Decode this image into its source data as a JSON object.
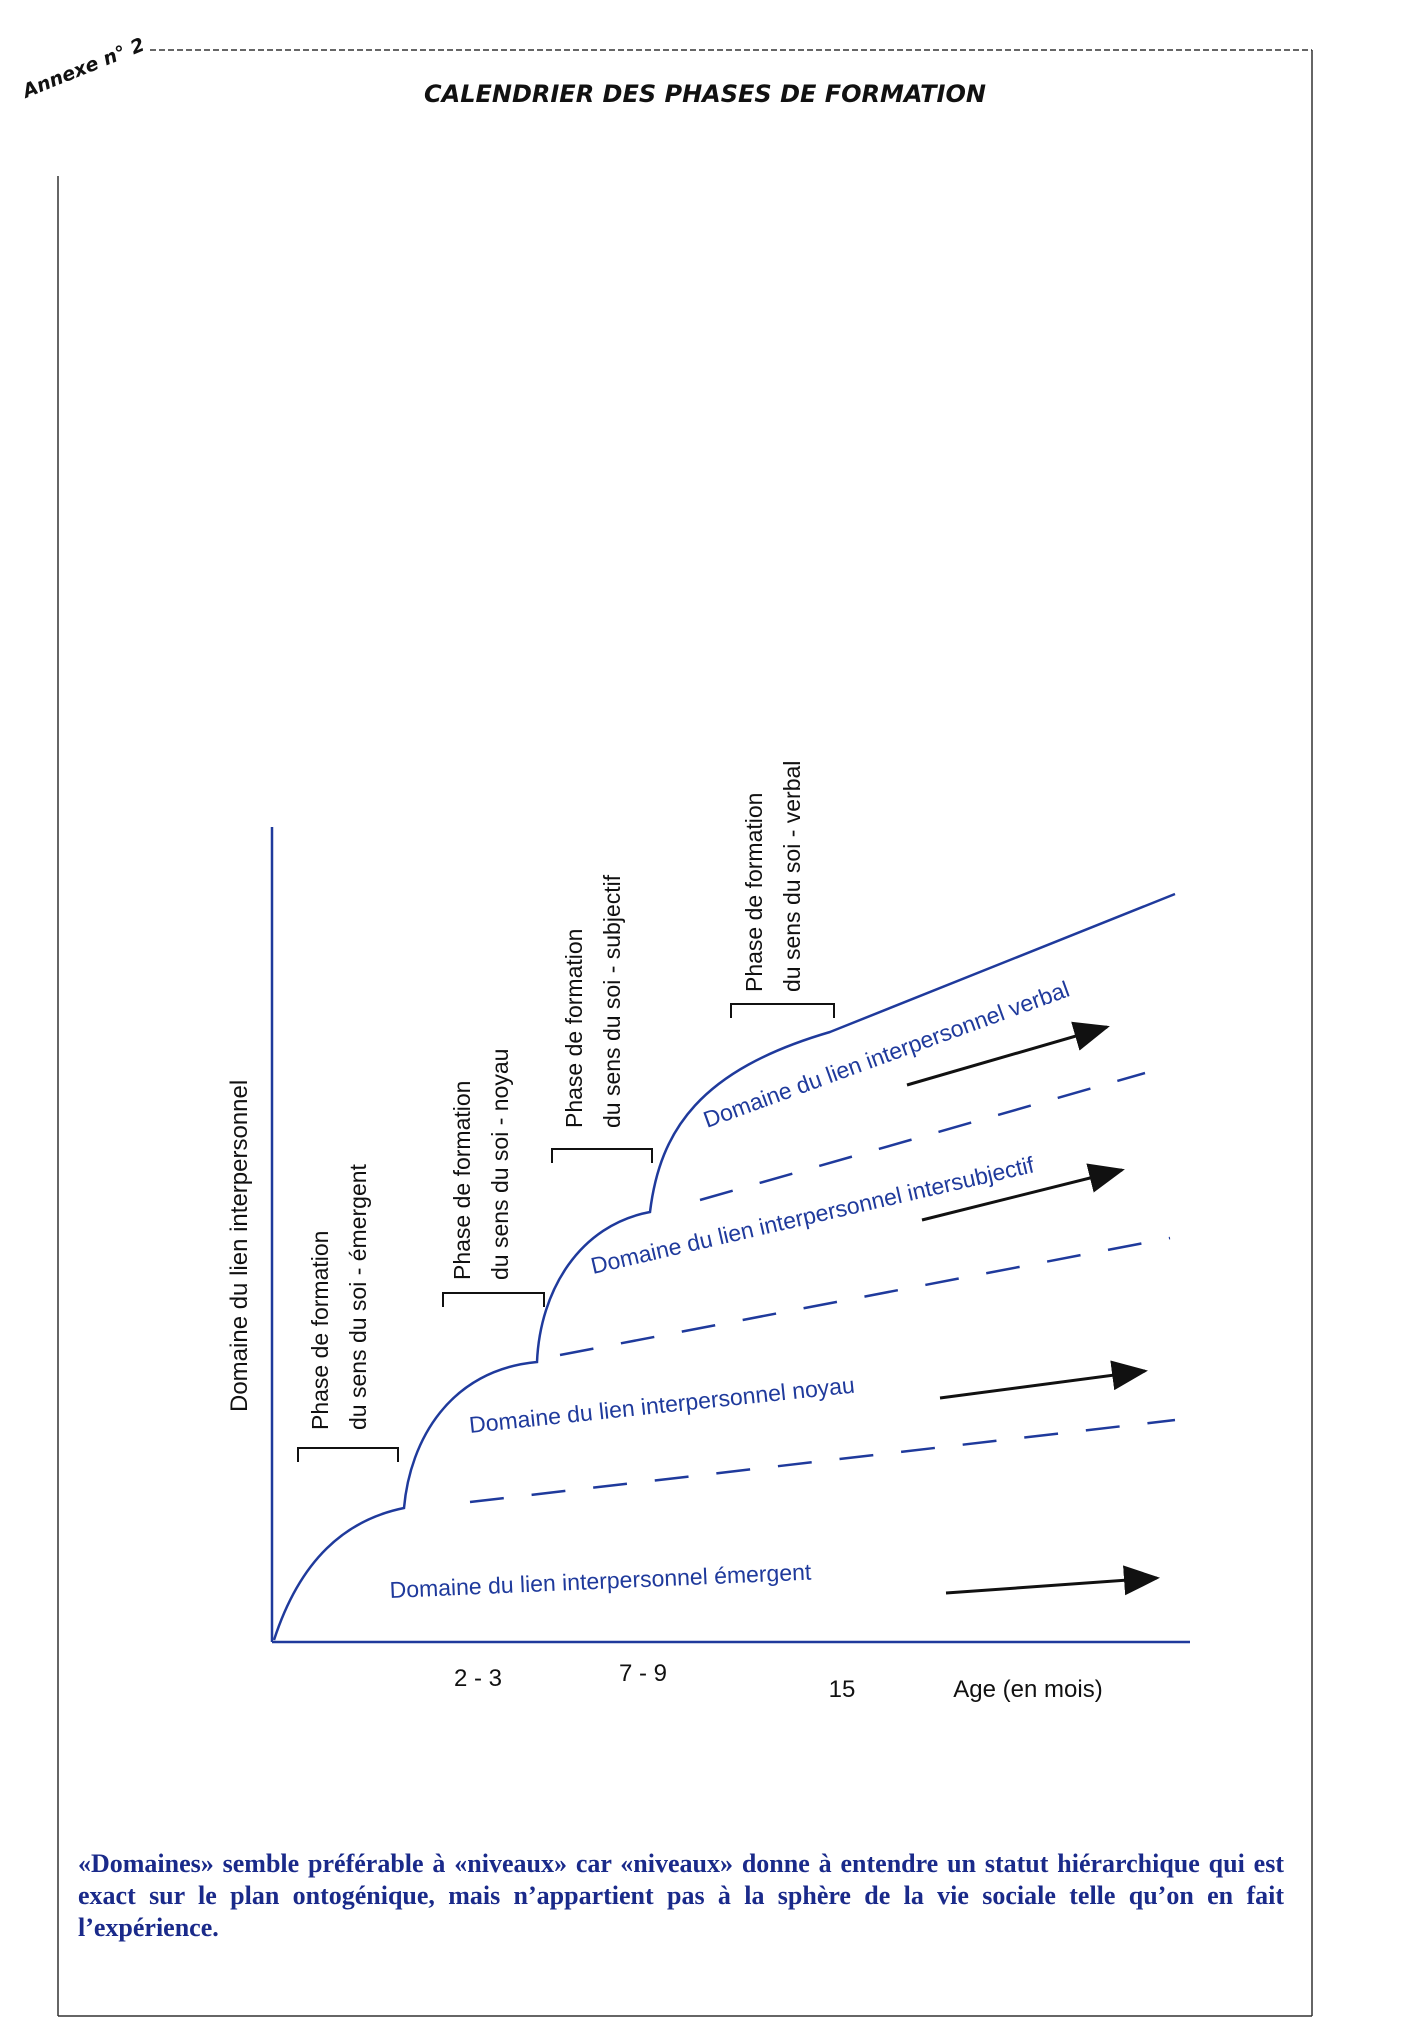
{
  "annex_label": "Annexe n° 2",
  "page_title": "CALENDRIER DES PHASES DE FORMATION",
  "diagram": {
    "y_axis_label": "Domaine du lien interpersonnel",
    "x_axis_label": "Age (en mois)",
    "x_ticks": [
      "2 - 3",
      "7 - 9",
      "15"
    ],
    "phases": [
      {
        "line1": "Phase de formation",
        "line2": "du sens du soi - émergent"
      },
      {
        "line1": "Phase de formation",
        "line2": "du sens du soi - noyau"
      },
      {
        "line1": "Phase de formation",
        "line2": "du sens du soi - subjectif"
      },
      {
        "line1": "Phase de formation",
        "line2": "du sens du soi - verbal"
      }
    ],
    "domains": [
      "Domaine du lien interpersonnel émergent",
      "Domaine du lien interpersonnel noyau",
      "Domaine du lien interpersonnel intersubjectif",
      "Domaine du lien interpersonnel verbal"
    ],
    "colors": {
      "curve": "#1f3a9c",
      "text": "#1f3a9c",
      "axis": "#1f3a9c",
      "arrow": "#111111"
    }
  },
  "caption": "«Domaines» semble préférable à «niveaux» car «niveaux» donne à entendre un statut hiérarchique qui est exact sur le plan ontogénique, mais n’appartient pas à la sphère de la vie sociale telle qu’on en fait l’expérience."
}
